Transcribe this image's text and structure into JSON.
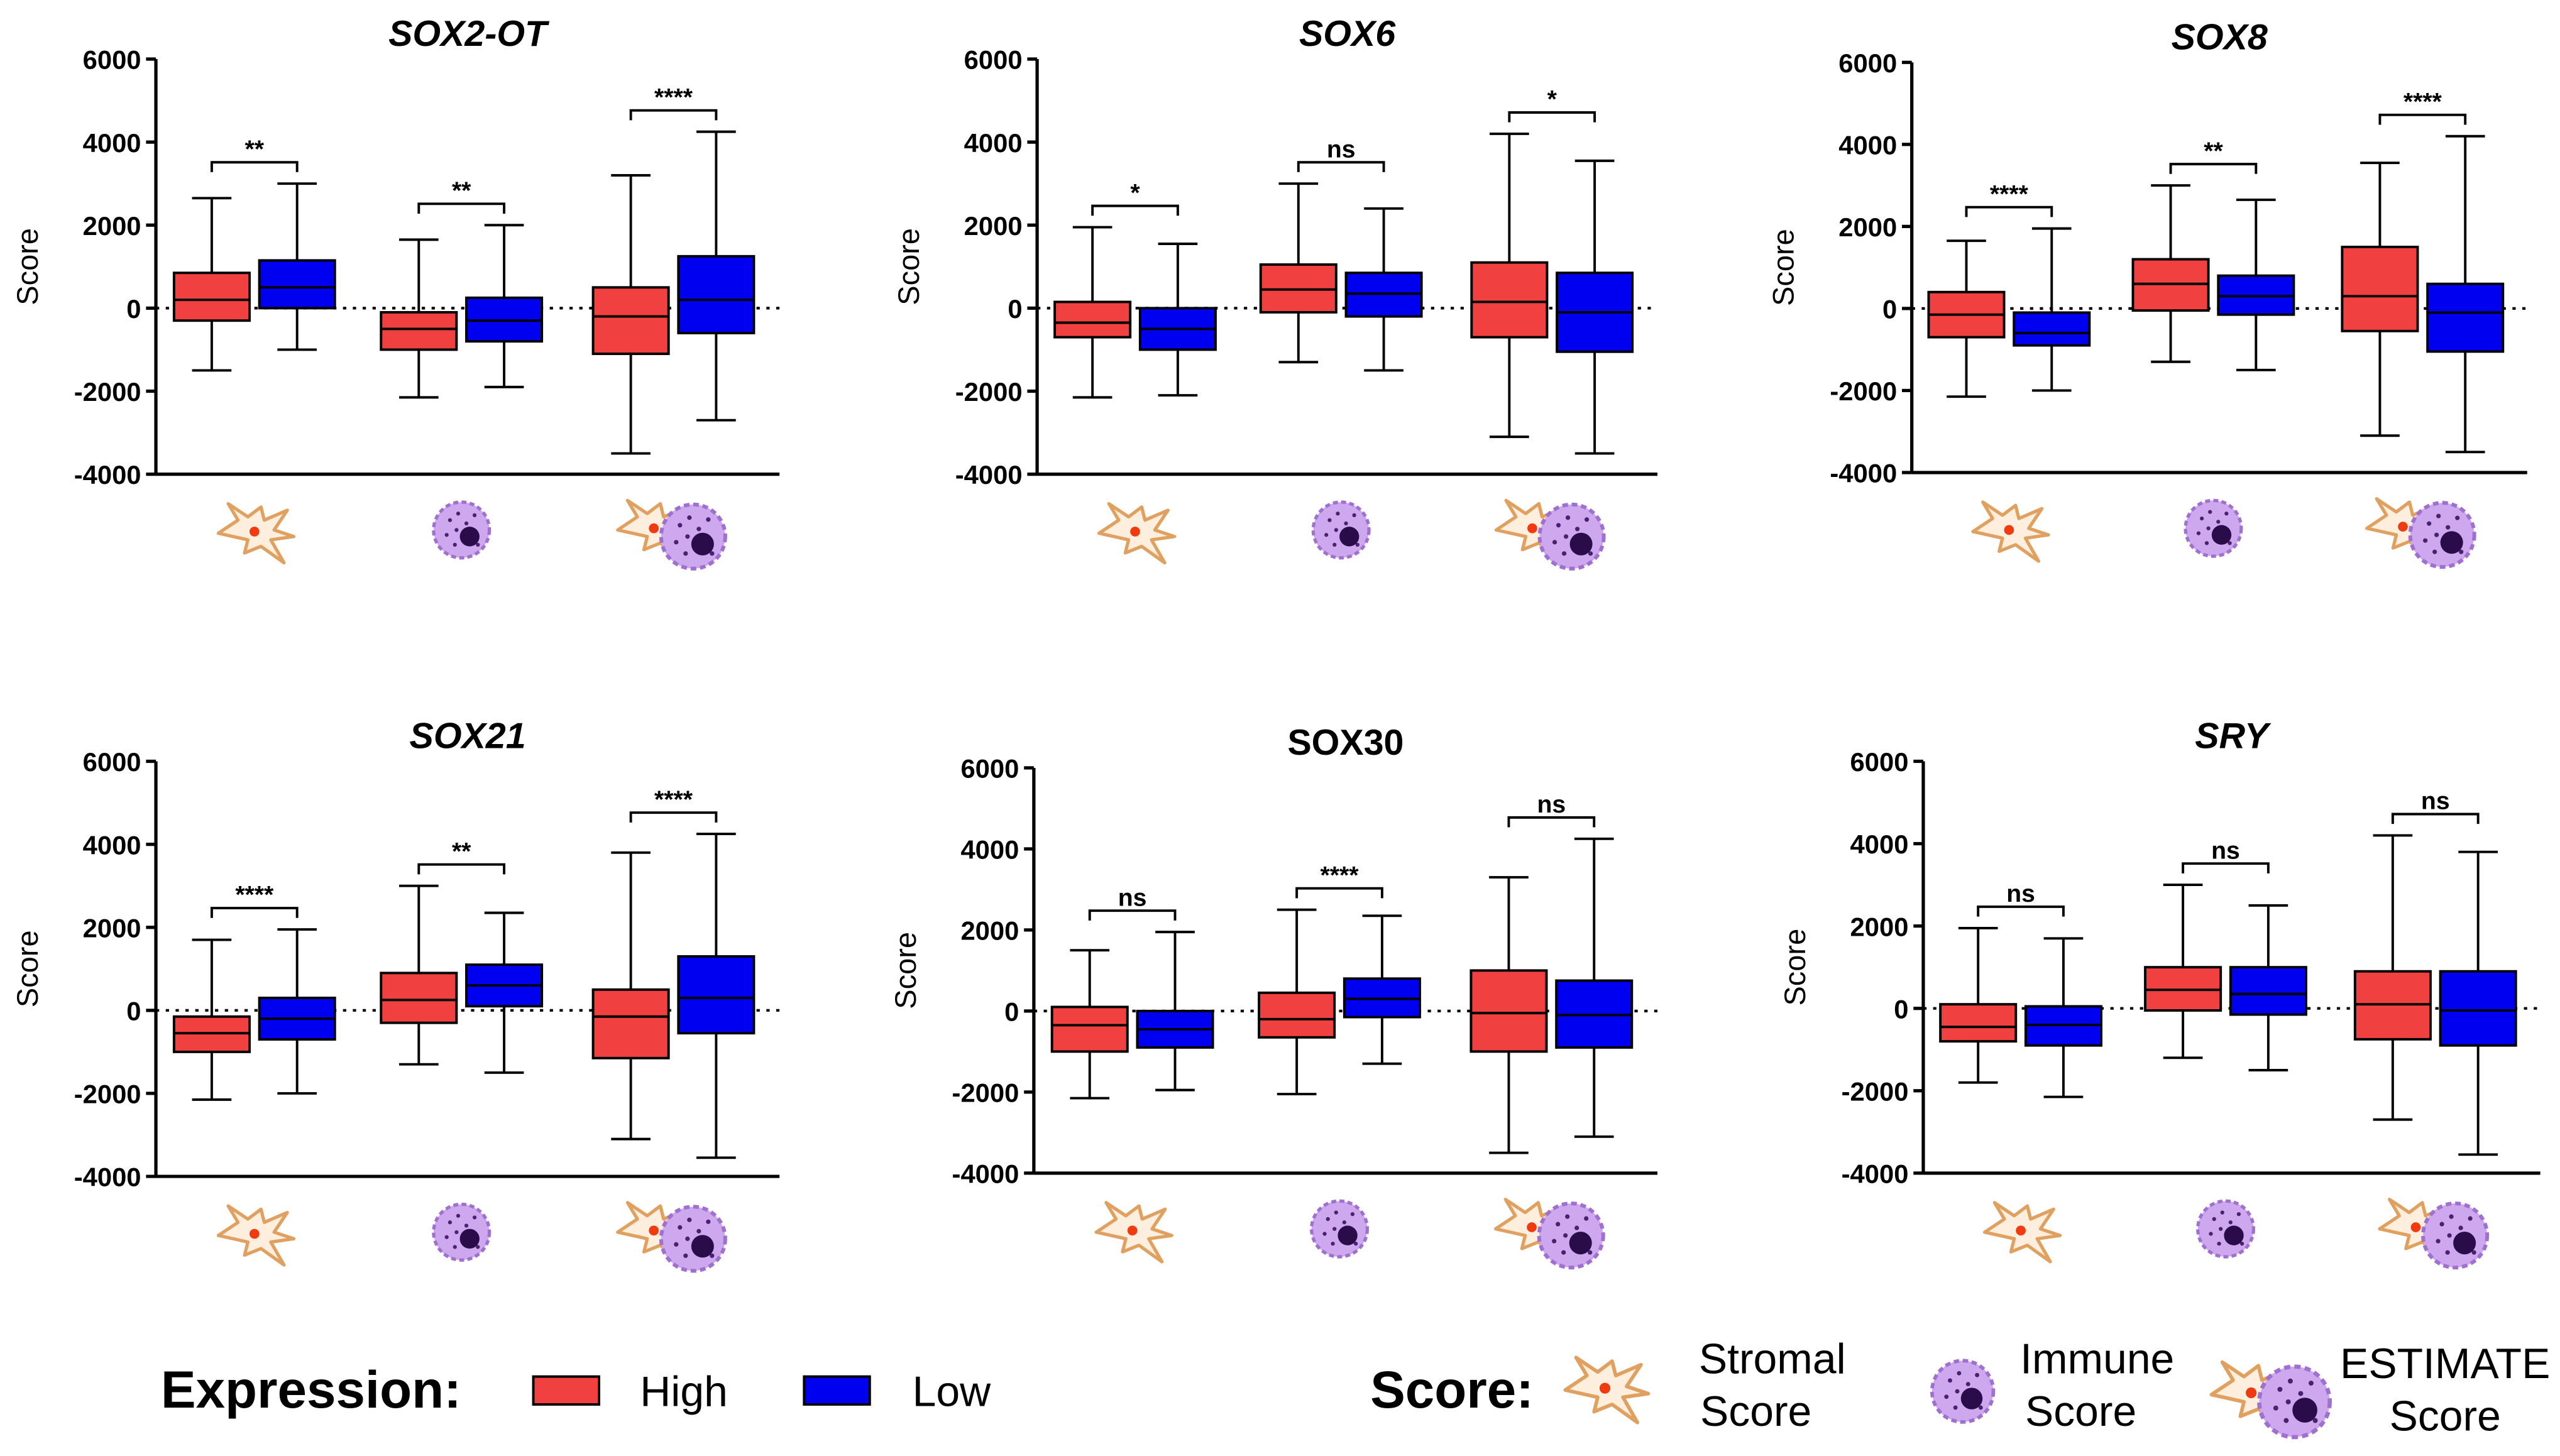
{
  "chart_data": [
    {
      "type": "box",
      "title": "SOX2-OT",
      "title_italic": true,
      "y_label": "Score",
      "categories": [
        null,
        null,
        null
      ],
      "ylim": [
        -4000,
        6000
      ],
      "yticks": [
        -4000,
        -2000,
        0,
        2000,
        4000,
        6000
      ],
      "reference_line": 0,
      "series": [
        {
          "name": "High",
          "color": "#f04040",
          "values": [
            {
              "min": -1500,
              "q1": -300,
              "median": 200,
              "q3": 850,
              "max": 2650
            },
            {
              "min": -2150,
              "q1": -1000,
              "median": -500,
              "q3": -100,
              "max": 1650
            },
            {
              "min": -3500,
              "q1": -1100,
              "median": -200,
              "q3": 500,
              "max": 3200
            }
          ]
        },
        {
          "name": "Low",
          "color": "#0000f0",
          "values": [
            {
              "min": -1000,
              "q1": 0,
              "median": 500,
              "q3": 1150,
              "max": 3000
            },
            {
              "min": -1900,
              "q1": -800,
              "median": -300,
              "q3": 250,
              "max": 2000
            },
            {
              "min": -2700,
              "q1": -600,
              "median": 200,
              "q3": 1250,
              "max": 4250
            }
          ]
        }
      ],
      "annotations": [
        "**",
        "**",
        "****"
      ]
    },
    {
      "type": "box",
      "title": "SOX6",
      "title_italic": true,
      "y_label": "Score",
      "categories": [
        null,
        null,
        null
      ],
      "ylim": [
        -4000,
        6000
      ],
      "yticks": [
        -4000,
        -2000,
        0,
        2000,
        4000,
        6000
      ],
      "reference_line": 0,
      "series": [
        {
          "name": "High",
          "color": "#f04040",
          "values": [
            {
              "min": -2150,
              "q1": -700,
              "median": -350,
              "q3": 150,
              "max": 1950
            },
            {
              "min": -1300,
              "q1": -100,
              "median": 450,
              "q3": 1050,
              "max": 3000
            },
            {
              "min": -3100,
              "q1": -700,
              "median": 150,
              "q3": 1100,
              "max": 4200
            }
          ]
        },
        {
          "name": "Low",
          "color": "#0000f0",
          "values": [
            {
              "min": -2100,
              "q1": -1000,
              "median": -500,
              "q3": 0,
              "max": 1550
            },
            {
              "min": -1500,
              "q1": -200,
              "median": 350,
              "q3": 850,
              "max": 2400
            },
            {
              "min": -3500,
              "q1": -1050,
              "median": -100,
              "q3": 850,
              "max": 3550
            }
          ]
        }
      ],
      "annotations": [
        "*",
        "ns",
        "*"
      ]
    },
    {
      "type": "box",
      "title": "SOX8",
      "title_italic": true,
      "y_label": "Score",
      "categories": [
        null,
        null,
        null
      ],
      "ylim": [
        -4000,
        6000
      ],
      "yticks": [
        -4000,
        -2000,
        0,
        2000,
        4000,
        6000
      ],
      "reference_line": 0,
      "series": [
        {
          "name": "High",
          "color": "#f04040",
          "values": [
            {
              "min": -2150,
              "q1": -700,
              "median": -150,
              "q3": 400,
              "max": 1650
            },
            {
              "min": -1300,
              "q1": -50,
              "median": 600,
              "q3": 1200,
              "max": 3000
            },
            {
              "min": -3100,
              "q1": -550,
              "median": 300,
              "q3": 1500,
              "max": 3550
            }
          ]
        },
        {
          "name": "Low",
          "color": "#0000f0",
          "values": [
            {
              "min": -2000,
              "q1": -900,
              "median": -600,
              "q3": -100,
              "max": 1950
            },
            {
              "min": -1500,
              "q1": -150,
              "median": 300,
              "q3": 800,
              "max": 2650
            },
            {
              "min": -3500,
              "q1": -1050,
              "median": -100,
              "q3": 600,
              "max": 4200
            }
          ]
        }
      ],
      "annotations": [
        "****",
        "**",
        "****"
      ]
    },
    {
      "type": "box",
      "title": "SOX21",
      "title_italic": true,
      "y_label": "Score",
      "categories": [
        null,
        null,
        null
      ],
      "ylim": [
        -4000,
        6000
      ],
      "yticks": [
        -4000,
        -2000,
        0,
        2000,
        4000,
        6000
      ],
      "reference_line": 0,
      "series": [
        {
          "name": "High",
          "color": "#f04040",
          "values": [
            {
              "min": -2150,
              "q1": -1000,
              "median": -550,
              "q3": -150,
              "max": 1700
            },
            {
              "min": -1300,
              "q1": -300,
              "median": 250,
              "q3": 900,
              "max": 3000
            },
            {
              "min": -3100,
              "q1": -1150,
              "median": -150,
              "q3": 500,
              "max": 3800
            }
          ]
        },
        {
          "name": "Low",
          "color": "#0000f0",
          "values": [
            {
              "min": -2000,
              "q1": -700,
              "median": -200,
              "q3": 300,
              "max": 1950
            },
            {
              "min": -1500,
              "q1": 100,
              "median": 600,
              "q3": 1100,
              "max": 2350
            },
            {
              "min": -3550,
              "q1": -550,
              "median": 300,
              "q3": 1300,
              "max": 4250
            }
          ]
        }
      ],
      "annotations": [
        "****",
        "**",
        "****"
      ]
    },
    {
      "type": "box",
      "title": "SOX30",
      "title_italic": false,
      "y_label": "Score",
      "categories": [
        null,
        null,
        null
      ],
      "ylim": [
        -4000,
        6000
      ],
      "yticks": [
        -4000,
        -2000,
        0,
        2000,
        4000,
        6000
      ],
      "reference_line": 0,
      "series": [
        {
          "name": "High",
          "color": "#f04040",
          "values": [
            {
              "min": -2150,
              "q1": -1000,
              "median": -350,
              "q3": 100,
              "max": 1500
            },
            {
              "min": -2050,
              "q1": -650,
              "median": -200,
              "q3": 450,
              "max": 2500
            },
            {
              "min": -3500,
              "q1": -1000,
              "median": -50,
              "q3": 1000,
              "max": 3300
            }
          ]
        },
        {
          "name": "Low",
          "color": "#0000f0",
          "values": [
            {
              "min": -1950,
              "q1": -900,
              "median": -450,
              "q3": 0,
              "max": 1950
            },
            {
              "min": -1300,
              "q1": -150,
              "median": 300,
              "q3": 800,
              "max": 2350
            },
            {
              "min": -3100,
              "q1": -900,
              "median": -100,
              "q3": 750,
              "max": 4250
            }
          ]
        }
      ],
      "annotations": [
        "ns",
        "****",
        "ns"
      ]
    },
    {
      "type": "box",
      "title": "SRY",
      "title_italic": true,
      "y_label": "Score",
      "categories": [
        null,
        null,
        null
      ],
      "ylim": [
        -4000,
        6000
      ],
      "yticks": [
        -4000,
        -2000,
        0,
        2000,
        4000,
        6000
      ],
      "reference_line": 0,
      "series": [
        {
          "name": "High",
          "color": "#f04040",
          "values": [
            {
              "min": -1800,
              "q1": -800,
              "median": -450,
              "q3": 100,
              "max": 1950
            },
            {
              "min": -1200,
              "q1": -50,
              "median": 450,
              "q3": 1000,
              "max": 3000
            },
            {
              "min": -2700,
              "q1": -750,
              "median": 100,
              "q3": 900,
              "max": 4200
            }
          ]
        },
        {
          "name": "Low",
          "color": "#0000f0",
          "values": [
            {
              "min": -2150,
              "q1": -900,
              "median": -400,
              "q3": 50,
              "max": 1700
            },
            {
              "min": -1500,
              "q1": -150,
              "median": 350,
              "q3": 1000,
              "max": 2500
            },
            {
              "min": -3550,
              "q1": -900,
              "median": -50,
              "q3": 900,
              "max": 3800
            }
          ]
        }
      ],
      "annotations": [
        "ns",
        "ns",
        "ns"
      ]
    }
  ],
  "legend": {
    "expression_title": "Expression:",
    "score_title": "Score:",
    "score_items": [
      [
        "Stromal",
        "Score"
      ],
      [
        "Immune",
        "Score"
      ],
      [
        "ESTIMATE",
        "Score"
      ]
    ]
  }
}
